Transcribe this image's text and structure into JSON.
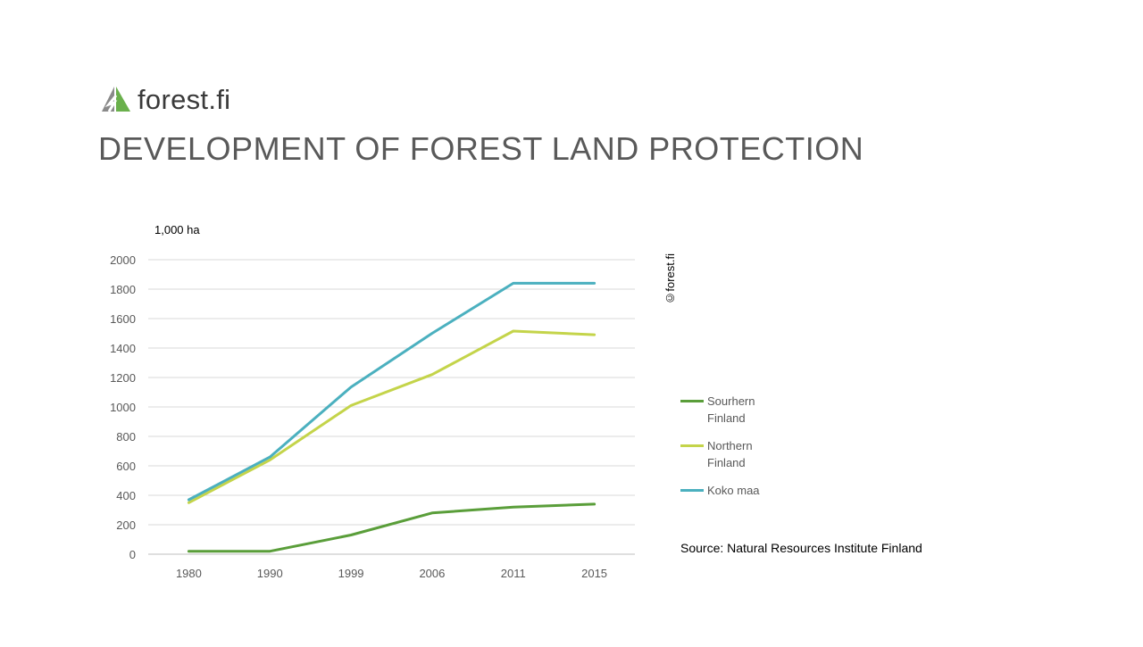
{
  "logo": {
    "text": "forest.fi",
    "icon": "tree-logo-icon",
    "colors": {
      "left": "#8a8a8a",
      "right": "#6ab04c"
    }
  },
  "title": "DEVELOPMENT OF FOREST LAND PROTECTION",
  "copyright": "©forest.fi",
  "source": "Source: Natural Resources Institute Finland",
  "chart_data": {
    "type": "line",
    "title": "",
    "xlabel": "",
    "ylabel": "1,000 ha",
    "categories": [
      "1980",
      "1990",
      "1999",
      "2006",
      "2011",
      "2015"
    ],
    "ylim": [
      0,
      2000
    ],
    "yticks": [
      0,
      200,
      400,
      600,
      800,
      1000,
      1200,
      1400,
      1600,
      1800,
      2000
    ],
    "grid": true,
    "legend_position": "right",
    "series": [
      {
        "name": "Sourhern Finland",
        "color": "#5a9e3a",
        "values": [
          20,
          20,
          130,
          280,
          320,
          340
        ]
      },
      {
        "name": "Northern Finland",
        "color": "#c4d44a",
        "values": [
          350,
          640,
          1010,
          1220,
          1515,
          1490
        ]
      },
      {
        "name": "Koko maa",
        "color": "#4bb0bf",
        "values": [
          370,
          660,
          1135,
          1500,
          1840,
          1840
        ]
      }
    ]
  }
}
